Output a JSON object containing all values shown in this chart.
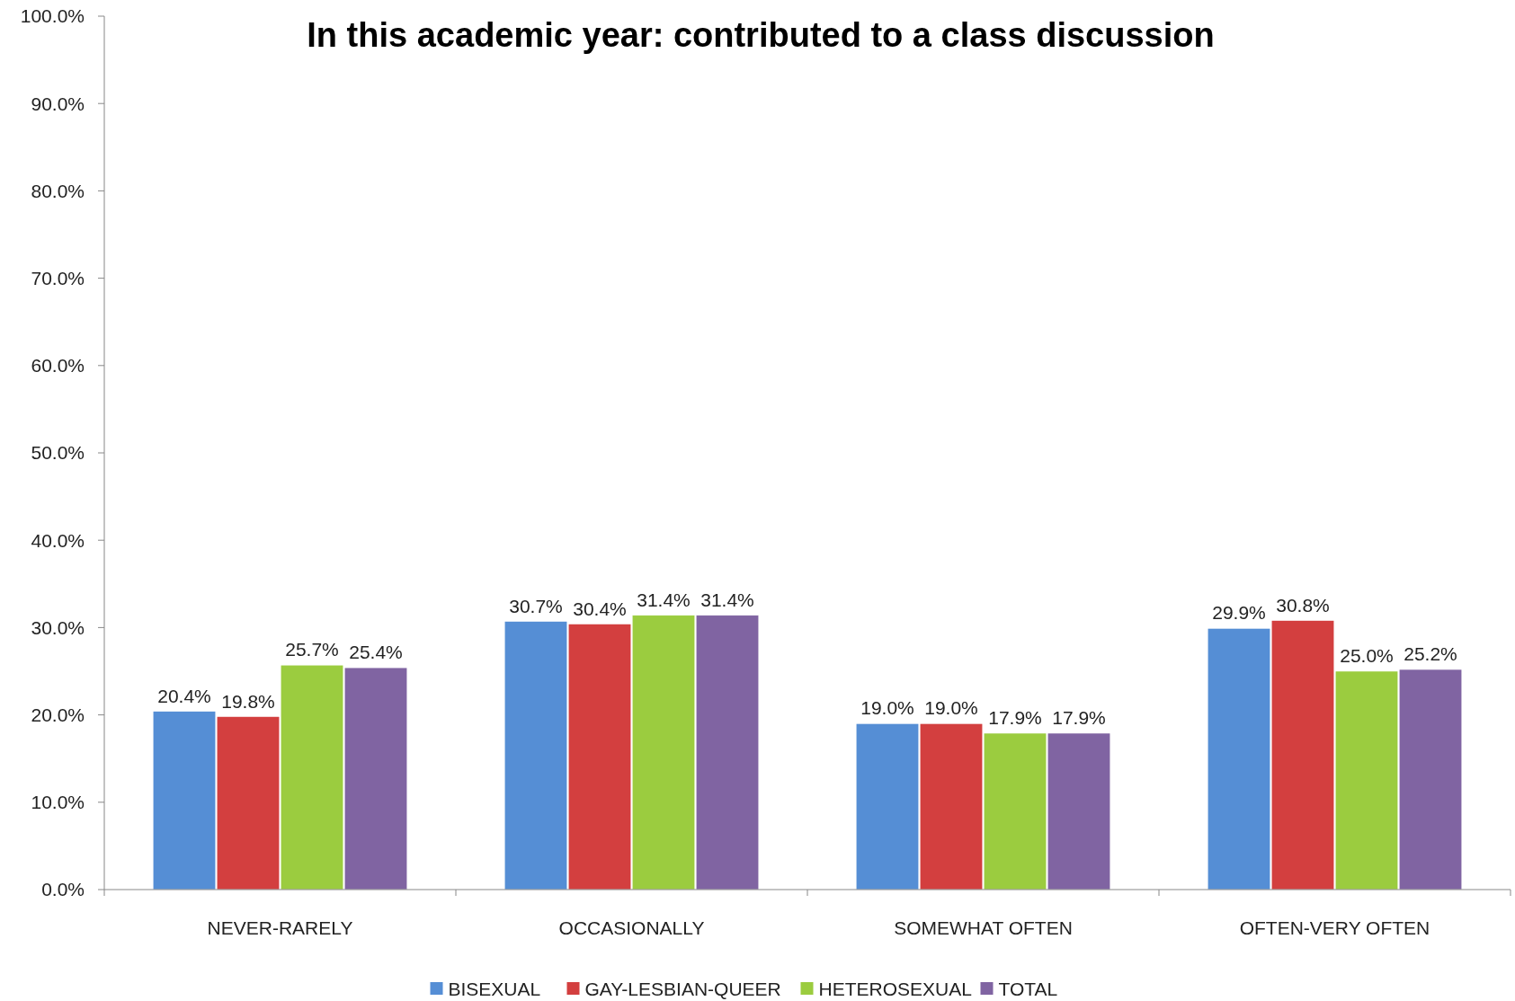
{
  "chart_data": {
    "type": "bar",
    "title": "In this academic year: contributed to a class discussion",
    "categories": [
      "NEVER-RARELY",
      "OCCASIONALLY",
      "SOMEWHAT OFTEN",
      "OFTEN-VERY OFTEN"
    ],
    "series": [
      {
        "name": "BISEXUAL",
        "color": "#558ed5",
        "values": [
          20.4,
          30.7,
          19.0,
          29.9
        ],
        "value_labels": [
          "20.4%",
          "30.7%",
          "19.0%",
          "29.9%"
        ]
      },
      {
        "name": "GAY-LESBIAN-QUEER",
        "color": "#d33f3f",
        "values": [
          19.8,
          30.4,
          19.0,
          30.8
        ],
        "value_labels": [
          "19.8%",
          "30.4%",
          "19.0%",
          "30.8%"
        ]
      },
      {
        "name": "HETEROSEXUAL",
        "color": "#9bcc3f",
        "values": [
          25.7,
          31.4,
          17.9,
          25.0
        ],
        "value_labels": [
          "25.7%",
          "31.4%",
          "17.9%",
          "25.0%"
        ]
      },
      {
        "name": "TOTAL",
        "color": "#8064a2",
        "values": [
          25.4,
          31.4,
          17.9,
          25.2
        ],
        "value_labels": [
          "25.4%",
          "31.4%",
          "17.9%",
          "25.2%"
        ]
      }
    ],
    "ylim": [
      0,
      100
    ],
    "yticks": [
      {
        "value": 0,
        "label": "0.0%"
      },
      {
        "value": 10,
        "label": "10.0%"
      },
      {
        "value": 20,
        "label": "20.0%"
      },
      {
        "value": 30,
        "label": "30.0%"
      },
      {
        "value": 40,
        "label": "40.0%"
      },
      {
        "value": 50,
        "label": "50.0%"
      },
      {
        "value": 60,
        "label": "60.0%"
      },
      {
        "value": 70,
        "label": "70.0%"
      },
      {
        "value": 80,
        "label": "80.0%"
      },
      {
        "value": 90,
        "label": "90.0%"
      },
      {
        "value": 100,
        "label": "100.0%"
      }
    ],
    "grid": false,
    "legend": "bottom"
  }
}
